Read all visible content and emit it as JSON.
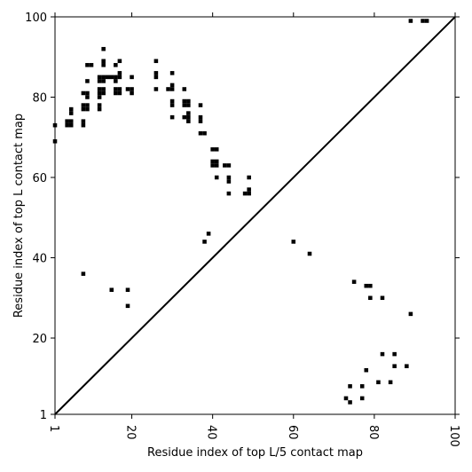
{
  "chart_data": {
    "type": "scatter",
    "title": "",
    "xlabel": "Residue index of top L/5 contact map",
    "ylabel": "Residue index of top L contact map",
    "xlim": [
      1,
      100
    ],
    "ylim": [
      1,
      100
    ],
    "xticks": [
      1,
      20,
      40,
      60,
      80,
      100
    ],
    "yticks": [
      1,
      20,
      40,
      60,
      80,
      100
    ],
    "x_tick_rotation_deg": 90,
    "grid": false,
    "legend": "none",
    "marker": "square",
    "marker_color": "#000000",
    "diagonal": {
      "from": [
        1,
        1
      ],
      "to": [
        100,
        100
      ],
      "color": "#000000"
    },
    "series": [
      {
        "name": "",
        "role": "top L contacts (upper triangle)",
        "points": [
          [
            1,
            73
          ],
          [
            1,
            69
          ],
          [
            4,
            73
          ],
          [
            5,
            73
          ],
          [
            4,
            74
          ],
          [
            5,
            74
          ],
          [
            5,
            76
          ],
          [
            5,
            77
          ],
          [
            8,
            73
          ],
          [
            8,
            74
          ],
          [
            8,
            77
          ],
          [
            8,
            78
          ],
          [
            9,
            77
          ],
          [
            9,
            78
          ],
          [
            8,
            81
          ],
          [
            9,
            81
          ],
          [
            9,
            80
          ],
          [
            9,
            84
          ],
          [
            9,
            88
          ],
          [
            10,
            88
          ],
          [
            12,
            77
          ],
          [
            12,
            78
          ],
          [
            12,
            80
          ],
          [
            12,
            81
          ],
          [
            13,
            81
          ],
          [
            12,
            82
          ],
          [
            13,
            82
          ],
          [
            12,
            84
          ],
          [
            13,
            84
          ],
          [
            12,
            85
          ],
          [
            13,
            85
          ],
          [
            13,
            88
          ],
          [
            13,
            89
          ],
          [
            13,
            92
          ],
          [
            14,
            85
          ],
          [
            15,
            85
          ],
          [
            16,
            84
          ],
          [
            16,
            85
          ],
          [
            16,
            88
          ],
          [
            17,
            85
          ],
          [
            17,
            86
          ],
          [
            17,
            89
          ],
          [
            16,
            81
          ],
          [
            17,
            81
          ],
          [
            16,
            82
          ],
          [
            17,
            82
          ],
          [
            19,
            82
          ],
          [
            20,
            82
          ],
          [
            20,
            81
          ],
          [
            20,
            85
          ],
          [
            26,
            82
          ],
          [
            26,
            85
          ],
          [
            26,
            86
          ],
          [
            26,
            89
          ],
          [
            29,
            82
          ],
          [
            30,
            82
          ],
          [
            30,
            83
          ],
          [
            30,
            86
          ],
          [
            30,
            78
          ],
          [
            30,
            79
          ],
          [
            30,
            75
          ],
          [
            33,
            82
          ],
          [
            33,
            75
          ],
          [
            33,
            78
          ],
          [
            33,
            79
          ],
          [
            34,
            78
          ],
          [
            34,
            79
          ],
          [
            34,
            75
          ],
          [
            34,
            76
          ],
          [
            34,
            74
          ],
          [
            37,
            74
          ],
          [
            37,
            75
          ],
          [
            37,
            78
          ],
          [
            37,
            71
          ],
          [
            38,
            71
          ],
          [
            40,
            67
          ],
          [
            41,
            67
          ],
          [
            40,
            63
          ],
          [
            40,
            64
          ],
          [
            41,
            63
          ],
          [
            41,
            64
          ],
          [
            41,
            60
          ],
          [
            43,
            63
          ],
          [
            44,
            63
          ],
          [
            44,
            59
          ],
          [
            44,
            60
          ],
          [
            44,
            56
          ],
          [
            48,
            56
          ],
          [
            49,
            56
          ],
          [
            49,
            57
          ],
          [
            49,
            60
          ],
          [
            89,
            99
          ],
          [
            92,
            99
          ],
          [
            93,
            99
          ]
        ]
      },
      {
        "name": "",
        "role": "top L/5 contacts (lower triangle)",
        "points": [
          [
            8,
            36
          ],
          [
            15,
            32
          ],
          [
            19,
            32
          ],
          [
            19,
            28
          ],
          [
            38,
            44
          ],
          [
            39,
            46
          ],
          [
            60,
            44
          ],
          [
            64,
            41
          ],
          [
            75,
            34
          ],
          [
            78,
            33
          ],
          [
            79,
            33
          ],
          [
            79,
            30
          ],
          [
            82,
            30
          ],
          [
            89,
            26
          ],
          [
            82,
            16
          ],
          [
            85,
            16
          ],
          [
            78,
            12
          ],
          [
            85,
            13
          ],
          [
            88,
            13
          ],
          [
            74,
            8
          ],
          [
            77,
            8
          ],
          [
            81,
            9
          ],
          [
            84,
            9
          ],
          [
            73,
            5
          ],
          [
            74,
            4
          ],
          [
            77,
            5
          ]
        ]
      }
    ]
  }
}
